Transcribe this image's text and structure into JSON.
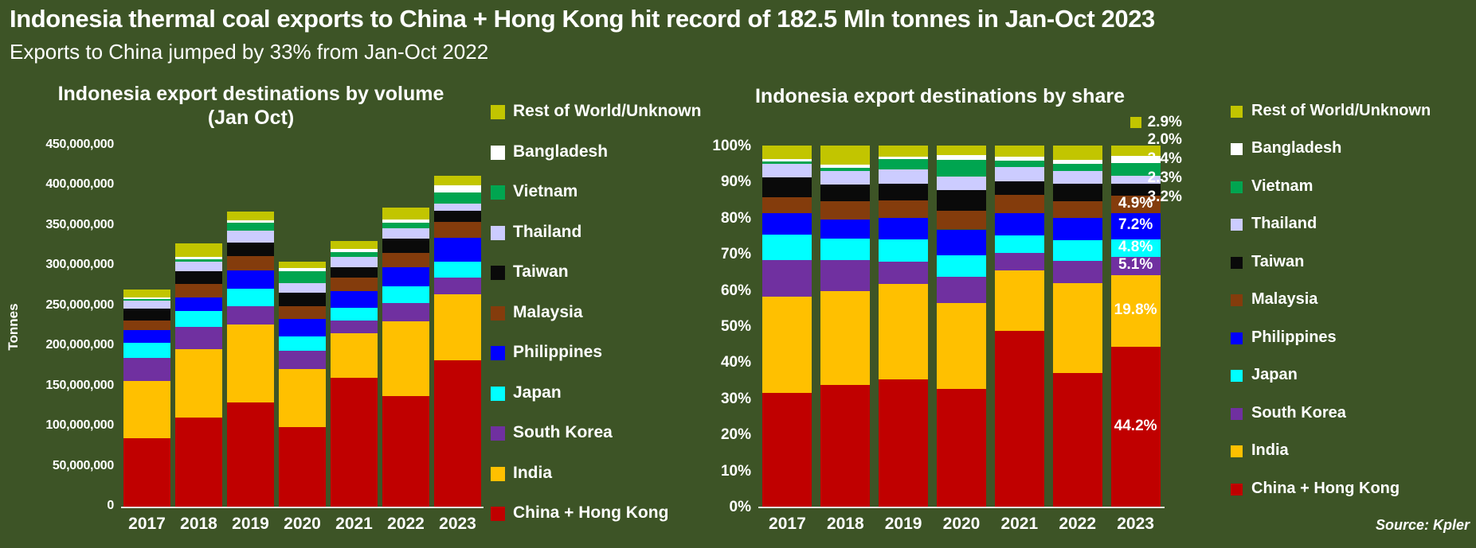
{
  "header": {
    "title": "Indonesia thermal coal exports to China + Hong Kong hit record of 182.5 Mln tonnes in Jan-Oct 2023",
    "subtitle": "Exports to China jumped by 33% from Jan-Oct 2022"
  },
  "source_note": "Source: Kpler",
  "colors": {
    "background": "#3d5426",
    "text": "#ffffff",
    "axis_line": "#e4e4e4",
    "leader_line": "#c8c8c8",
    "Rest of World/Unknown": "#c2c500",
    "Bangladesh": "#ffffff",
    "Vietnam": "#00a550",
    "Thailand": "#ccccff",
    "Taiwan": "#0a0a0a",
    "Malaysia": "#843c0c",
    "Philippines": "#0000ff",
    "Japan": "#00ffff",
    "South Korea": "#7030a0",
    "India": "#ffc000",
    "China + Hong Kong": "#c00000"
  },
  "legend": {
    "items": [
      "Rest of World/Unknown",
      "Bangladesh",
      "Vietnam",
      "Thailand",
      "Taiwan",
      "Malaysia",
      "Philippines",
      "Japan",
      "South Korea",
      "India",
      "China + Hong Kong"
    ]
  },
  "chart_data": [
    {
      "type": "bar",
      "stacked": true,
      "title": "Indonesia export destinations by volume",
      "subtitle": "(Jan Oct)",
      "xlabel": "",
      "ylabel": "Tonnes",
      "categories": [
        "2017",
        "2018",
        "2019",
        "2020",
        "2021",
        "2022",
        "2023"
      ],
      "ylim": [
        0,
        450000000
      ],
      "grid": false,
      "legend_position": "right",
      "yticks": [
        {
          "value": 0,
          "label": "0"
        },
        {
          "value": 50000000,
          "label": "50,000,000"
        },
        {
          "value": 100000000,
          "label": "100,000,000"
        },
        {
          "value": 150000000,
          "label": "150,000,000"
        },
        {
          "value": 200000000,
          "label": "200,000,000"
        },
        {
          "value": 250000000,
          "label": "250,000,000"
        },
        {
          "value": 300000000,
          "label": "300,000,000"
        },
        {
          "value": 350000000,
          "label": "350,000,000"
        },
        {
          "value": 400000000,
          "label": "400,000,000"
        },
        {
          "value": 450000000,
          "label": "450,000,000"
        }
      ],
      "series": [
        {
          "name": "China + Hong Kong",
          "values": [
            85000000,
            111000000,
            130000000,
            99000000,
            161000000,
            138000000,
            182500000
          ]
        },
        {
          "name": "India",
          "values": [
            72000000,
            85000000,
            97000000,
            73000000,
            55000000,
            93000000,
            81800000
          ]
        },
        {
          "name": "South Korea",
          "values": [
            28000000,
            28000000,
            23000000,
            22000000,
            16000000,
            23000000,
            21100000
          ]
        },
        {
          "name": "Japan",
          "values": [
            19000000,
            20000000,
            22000000,
            18000000,
            16000000,
            21000000,
            19800000
          ]
        },
        {
          "name": "Philippines",
          "values": [
            16000000,
            17000000,
            22000000,
            22000000,
            21000000,
            23000000,
            29700000
          ]
        },
        {
          "name": "Malaysia",
          "values": [
            12000000,
            17000000,
            18000000,
            16000000,
            17000000,
            18000000,
            20200000
          ]
        },
        {
          "name": "Taiwan",
          "values": [
            15000000,
            15000000,
            17000000,
            17000000,
            12000000,
            18000000,
            13200000
          ]
        },
        {
          "name": "Thailand",
          "values": [
            10000000,
            12000000,
            15000000,
            12000000,
            13000000,
            13000000,
            9500000
          ]
        },
        {
          "name": "Vietnam",
          "values": [
            2000000,
            3000000,
            10000000,
            14000000,
            6000000,
            7000000,
            14000000
          ]
        },
        {
          "name": "Bangladesh",
          "values": [
            2000000,
            3000000,
            3000000,
            4000000,
            4000000,
            4000000,
            8300000
          ]
        },
        {
          "name": "Rest of World/Unknown",
          "values": [
            10000000,
            17000000,
            11000000,
            8000000,
            10000000,
            15000000,
            12000000
          ]
        }
      ]
    },
    {
      "type": "bar",
      "stacked": "percent",
      "title": "Indonesia export destinations by share",
      "xlabel": "",
      "ylabel": "",
      "categories": [
        "2017",
        "2018",
        "2019",
        "2020",
        "2021",
        "2022",
        "2023"
      ],
      "ylim": [
        0,
        100
      ],
      "grid": false,
      "legend_position": "right",
      "yticks": [
        {
          "value": 0,
          "label": "0%"
        },
        {
          "value": 10,
          "label": "10%"
        },
        {
          "value": 20,
          "label": "20%"
        },
        {
          "value": 30,
          "label": "30%"
        },
        {
          "value": 40,
          "label": "40%"
        },
        {
          "value": 50,
          "label": "50%"
        },
        {
          "value": 60,
          "label": "60%"
        },
        {
          "value": 70,
          "label": "70%"
        },
        {
          "value": 80,
          "label": "80%"
        },
        {
          "value": 90,
          "label": "90%"
        },
        {
          "value": 100,
          "label": "100%"
        }
      ],
      "series": [
        {
          "name": "China + Hong Kong",
          "values": [
            31.4,
            33.8,
            35.3,
            32.5,
            48.6,
            37.0,
            44.2
          ]
        },
        {
          "name": "India",
          "values": [
            26.6,
            25.9,
            26.4,
            23.9,
            16.6,
            24.9,
            19.8
          ]
        },
        {
          "name": "South Korea",
          "values": [
            10.3,
            8.5,
            6.3,
            7.2,
            4.8,
            6.2,
            5.1
          ]
        },
        {
          "name": "Japan",
          "values": [
            7.0,
            6.1,
            6.0,
            5.9,
            4.8,
            5.6,
            4.8
          ]
        },
        {
          "name": "Philippines",
          "values": [
            5.9,
            5.2,
            6.0,
            7.2,
            6.3,
            6.2,
            7.2
          ]
        },
        {
          "name": "Malaysia",
          "values": [
            4.4,
            5.2,
            4.9,
            5.2,
            5.1,
            4.8,
            4.9
          ]
        },
        {
          "name": "Taiwan",
          "values": [
            5.5,
            4.6,
            4.6,
            5.6,
            3.6,
            4.8,
            3.2
          ]
        },
        {
          "name": "Thailand",
          "values": [
            3.7,
            3.7,
            4.1,
            3.9,
            3.9,
            3.5,
            2.3
          ]
        },
        {
          "name": "Vietnam",
          "values": [
            0.7,
            0.9,
            2.7,
            4.6,
            1.8,
            1.9,
            3.4
          ]
        },
        {
          "name": "Bangladesh",
          "values": [
            0.7,
            0.9,
            0.8,
            1.3,
            1.2,
            1.1,
            2.0
          ]
        },
        {
          "name": "Rest of World/Unknown",
          "values": [
            3.7,
            5.2,
            3.0,
            2.6,
            3.0,
            4.0,
            2.9
          ]
        }
      ],
      "annotations_2023": {
        "inside": [
          {
            "series": "Malaysia",
            "text": "4.9%"
          },
          {
            "series": "Philippines",
            "text": "7.2%"
          },
          {
            "series": "Japan",
            "text": "4.8%"
          },
          {
            "series": "South Korea",
            "text": "5.1%"
          },
          {
            "series": "India",
            "text": "19.8%"
          },
          {
            "series": "China + Hong Kong",
            "text": "44.2%"
          }
        ],
        "outside": [
          {
            "series": "Rest of World/Unknown",
            "text": "2.9%",
            "swatch": true,
            "leader": false
          },
          {
            "series": "Bangladesh",
            "text": "2.0%",
            "swatch": false,
            "leader": true
          },
          {
            "series": "Vietnam",
            "text": "3.4%",
            "swatch": false,
            "leader": true
          },
          {
            "series": "Thailand",
            "text": "2.3%",
            "swatch": false,
            "leader": true
          },
          {
            "series": "Taiwan",
            "text": "3.2%",
            "swatch": false,
            "leader": true
          }
        ]
      }
    }
  ]
}
